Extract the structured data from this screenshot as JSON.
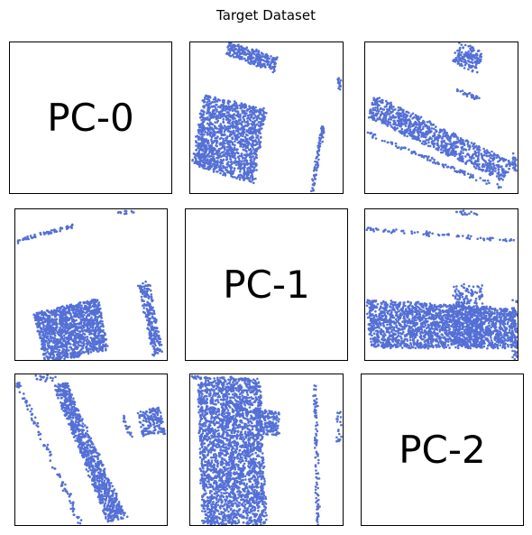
{
  "title": "Target Dataset",
  "point_color": "#5470d6",
  "chart_data": {
    "type": "scatter",
    "title": "Target Dataset",
    "layout": "3x3 grid",
    "axes_ticks": "hidden",
    "panels": [
      {
        "kind": "label",
        "text": "PC-0"
      },
      {
        "kind": "scatter",
        "shapes": [
          {
            "poly": [
              [
                0.26,
                0.0
              ],
              [
                0.58,
                0.1
              ],
              [
                0.55,
                0.2
              ],
              [
                0.23,
                0.08
              ]
            ],
            "n": 260
          },
          {
            "poly": [
              [
                0.09,
                0.35
              ],
              [
                0.5,
                0.44
              ],
              [
                0.42,
                0.94
              ],
              [
                0.01,
                0.81
              ]
            ],
            "n": 1400
          },
          {
            "poly": [
              [
                0.97,
                0.23
              ],
              [
                0.99,
                0.24
              ],
              [
                0.98,
                0.32
              ],
              [
                0.96,
                0.31
              ]
            ],
            "n": 15
          },
          {
            "poly": [
              [
                0.86,
                0.55
              ],
              [
                0.88,
                0.56
              ],
              [
                0.81,
                1.0
              ],
              [
                0.79,
                0.99
              ]
            ],
            "n": 80
          }
        ]
      },
      {
        "kind": "scatter",
        "shapes": [
          {
            "poly": [
              [
                0.62,
                0.0
              ],
              [
                0.78,
                0.06
              ],
              [
                0.73,
                0.2
              ],
              [
                0.57,
                0.13
              ]
            ],
            "n": 160
          },
          {
            "poly": [
              [
                0.57,
                0.3
              ],
              [
                0.75,
                0.36
              ],
              [
                0.74,
                0.38
              ],
              [
                0.56,
                0.32
              ]
            ],
            "n": 25
          },
          {
            "poly": [
              [
                0.06,
                0.35
              ],
              [
                0.97,
                0.8
              ],
              [
                0.9,
                0.92
              ],
              [
                0.02,
                0.5
              ]
            ],
            "n": 900
          },
          {
            "poly": [
              [
                0.97,
                0.73
              ],
              [
                0.99,
                0.73
              ],
              [
                0.99,
                0.86
              ],
              [
                0.97,
                0.86
              ]
            ],
            "n": 20
          },
          {
            "poly": [
              [
                0.01,
                0.59
              ],
              [
                0.9,
                0.96
              ],
              [
                0.89,
                0.98
              ],
              [
                0.0,
                0.61
              ]
            ],
            "n": 110
          }
        ]
      },
      {
        "kind": "scatter",
        "shapes": [
          {
            "poly": [
              [
                0.01,
                0.2
              ],
              [
                0.39,
                0.1
              ],
              [
                0.39,
                0.12
              ],
              [
                0.01,
                0.22
              ]
            ],
            "n": 60
          },
          {
            "poly": [
              [
                0.68,
                0.02
              ],
              [
                0.78,
                0.0
              ],
              [
                0.78,
                0.02
              ],
              [
                0.68,
                0.04
              ]
            ],
            "n": 12
          },
          {
            "poly": [
              [
                0.2,
                0.69
              ],
              [
                0.62,
                0.58
              ],
              [
                0.7,
                1.0
              ],
              [
                0.22,
                1.0
              ]
            ],
            "n": 0
          },
          {
            "poly": [
              [
                0.12,
                0.69
              ],
              [
                0.55,
                0.59
              ],
              [
                0.61,
                0.93
              ],
              [
                0.2,
                1.03
              ]
            ],
            "n": 1400
          },
          {
            "poly": [
              [
                0.81,
                0.49
              ],
              [
                0.88,
                0.47
              ],
              [
                0.97,
                0.95
              ],
              [
                0.91,
                0.97
              ]
            ],
            "n": 240
          }
        ]
      },
      {
        "kind": "label",
        "text": "PC-1"
      },
      {
        "kind": "scatter",
        "shapes": [
          {
            "poly": [
              [
                0.01,
                0.12
              ],
              [
                0.98,
                0.2
              ],
              [
                0.98,
                0.22
              ],
              [
                0.01,
                0.14
              ]
            ],
            "n": 80
          },
          {
            "poly": [
              [
                0.58,
                0.01
              ],
              [
                0.73,
                0.02
              ],
              [
                0.73,
                0.04
              ],
              [
                0.58,
                0.03
              ]
            ],
            "n": 15
          },
          {
            "poly": [
              [
                0.58,
                0.5
              ],
              [
                0.77,
                0.5
              ],
              [
                0.77,
                0.91
              ],
              [
                0.58,
                0.91
              ]
            ],
            "n": 300
          },
          {
            "poly": [
              [
                0.01,
                0.6
              ],
              [
                0.99,
                0.66
              ],
              [
                1.0,
                0.92
              ],
              [
                0.04,
                0.92
              ]
            ],
            "n": 2200
          },
          {
            "poly": [
              [
                0.97,
                0.6
              ],
              [
                1.0,
                0.6
              ],
              [
                1.0,
                1.0
              ],
              [
                0.97,
                1.0
              ]
            ],
            "n": 40
          }
        ]
      },
      {
        "kind": "scatter",
        "shapes": [
          {
            "poly": [
              [
                0.13,
                0.0
              ],
              [
                0.27,
                0.02
              ],
              [
                0.26,
                0.05
              ],
              [
                0.12,
                0.03
              ]
            ],
            "n": 20
          },
          {
            "poly": [
              [
                0.0,
                0.05
              ],
              [
                0.02,
                0.04
              ],
              [
                0.45,
                0.99
              ],
              [
                0.42,
                1.0
              ]
            ],
            "n": 100
          },
          {
            "poly": [
              [
                0.25,
                0.07
              ],
              [
                0.34,
                0.06
              ],
              [
                0.74,
                0.96
              ],
              [
                0.61,
                0.98
              ]
            ],
            "n": 900
          },
          {
            "poly": [
              [
                0.7,
                0.27
              ],
              [
                0.72,
                0.26
              ],
              [
                0.78,
                0.42
              ],
              [
                0.76,
                0.43
              ]
            ],
            "n": 20
          },
          {
            "poly": [
              [
                0.81,
                0.25
              ],
              [
                0.95,
                0.22
              ],
              [
                0.99,
                0.39
              ],
              [
                0.84,
                0.41
              ]
            ],
            "n": 160
          }
        ]
      },
      {
        "kind": "scatter",
        "shapes": [
          {
            "poly": [
              [
                0.01,
                0.01
              ],
              [
                0.46,
                0.03
              ],
              [
                0.46,
                0.05
              ],
              [
                0.01,
                0.03
              ]
            ],
            "n": 60
          },
          {
            "poly": [
              [
                0.05,
                0.04
              ],
              [
                0.46,
                0.05
              ],
              [
                0.5,
                1.0
              ],
              [
                0.08,
                1.0
              ]
            ],
            "n": 2600
          },
          {
            "poly": [
              [
                0.44,
                0.24
              ],
              [
                0.58,
                0.24
              ],
              [
                0.58,
                0.4
              ],
              [
                0.44,
                0.4
              ]
            ],
            "n": 160
          },
          {
            "poly": [
              [
                0.81,
                0.05
              ],
              [
                0.83,
                0.05
              ],
              [
                0.85,
                1.0
              ],
              [
                0.83,
                1.0
              ]
            ],
            "n": 90
          },
          {
            "poly": [
              [
                0.96,
                0.25
              ],
              [
                0.99,
                0.25
              ],
              [
                0.99,
                0.45
              ],
              [
                0.96,
                0.45
              ]
            ],
            "n": 20
          }
        ]
      },
      {
        "kind": "label",
        "text": "PC-2"
      }
    ]
  }
}
